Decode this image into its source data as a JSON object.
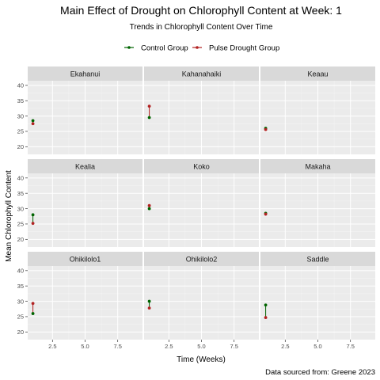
{
  "chart_data": {
    "type": "line",
    "title": "Main Effect of Drought on Chlorophyll Content at Week: 1",
    "subtitle": "Trends in Chlorophyll Content Over Time",
    "xlabel": "Time (Weeks)",
    "ylabel": "Mean Chlorophyll Content",
    "caption": "Data sourced from: Greene 2023",
    "xlim": [
      0.6,
      9.4
    ],
    "ylim": [
      17.5,
      41.5
    ],
    "x_ticks": [
      "2.5",
      "5.0",
      "7.5"
    ],
    "y_ticks": [
      "20",
      "25",
      "30",
      "35",
      "40"
    ],
    "grid": true,
    "legend_position": "top",
    "series": [
      {
        "name": "Control Group",
        "color": "#006400"
      },
      {
        "name": "Pulse Drought Group",
        "color": "#b22222"
      }
    ],
    "facets": [
      {
        "name": "Ekahanui",
        "x": 1,
        "control": 28.5,
        "drought": 27.5
      },
      {
        "name": "Kahanahaiki",
        "x": 1,
        "control": 29.5,
        "drought": 33.2
      },
      {
        "name": "Keaau",
        "x": 1,
        "control": 26.0,
        "drought": 25.6
      },
      {
        "name": "Kealia",
        "x": 1,
        "control": 28.0,
        "drought": 25.2
      },
      {
        "name": "Koko",
        "x": 1,
        "control": 30.0,
        "drought": 31.0
      },
      {
        "name": "Makaha",
        "x": 1,
        "control": 28.5,
        "drought": 28.2
      },
      {
        "name": "Ohikilolo1",
        "x": 1,
        "control": 26.0,
        "drought": 29.3
      },
      {
        "name": "Ohikilolo2",
        "x": 1,
        "control": 30.0,
        "drought": 27.8
      },
      {
        "name": "Saddle",
        "x": 1,
        "control": 28.8,
        "drought": 24.7
      }
    ]
  }
}
